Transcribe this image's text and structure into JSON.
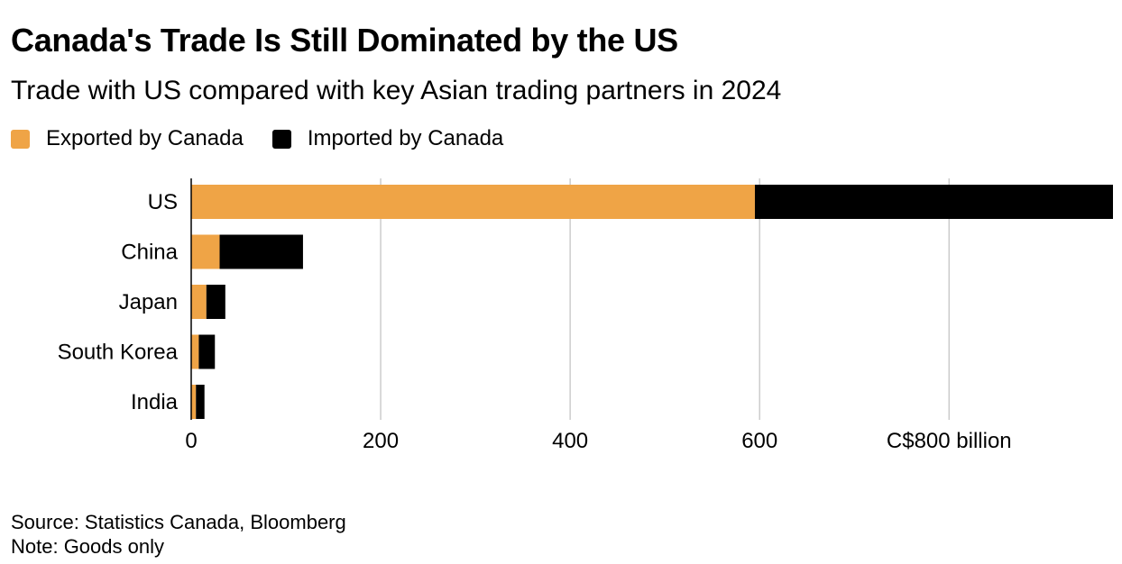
{
  "chart_data": {
    "type": "bar",
    "orientation": "horizontal",
    "stacked": true,
    "title": "Canada's Trade Is Still Dominated by the US",
    "subtitle": "Trade with US compared with key Asian trading partners in 2024",
    "categories": [
      "US",
      "China",
      "Japan",
      "South Korea",
      "India"
    ],
    "series": [
      {
        "name": "Exported by Canada",
        "color": "#efa446",
        "values": [
          595,
          30,
          16,
          8,
          5
        ]
      },
      {
        "name": "Imported by Canada",
        "color": "#000000",
        "values": [
          378,
          88,
          20,
          17,
          9
        ]
      }
    ],
    "xlim": [
      0,
      973
    ],
    "xticks": [
      0,
      200,
      400,
      600,
      800
    ],
    "xtick_labels": [
      "0",
      "200",
      "400",
      "600",
      "C$800 billion"
    ],
    "grid": true,
    "legend": "top-left"
  },
  "footer": {
    "source": "Source: Statistics Canada, Bloomberg",
    "note": "Note: Goods only"
  }
}
